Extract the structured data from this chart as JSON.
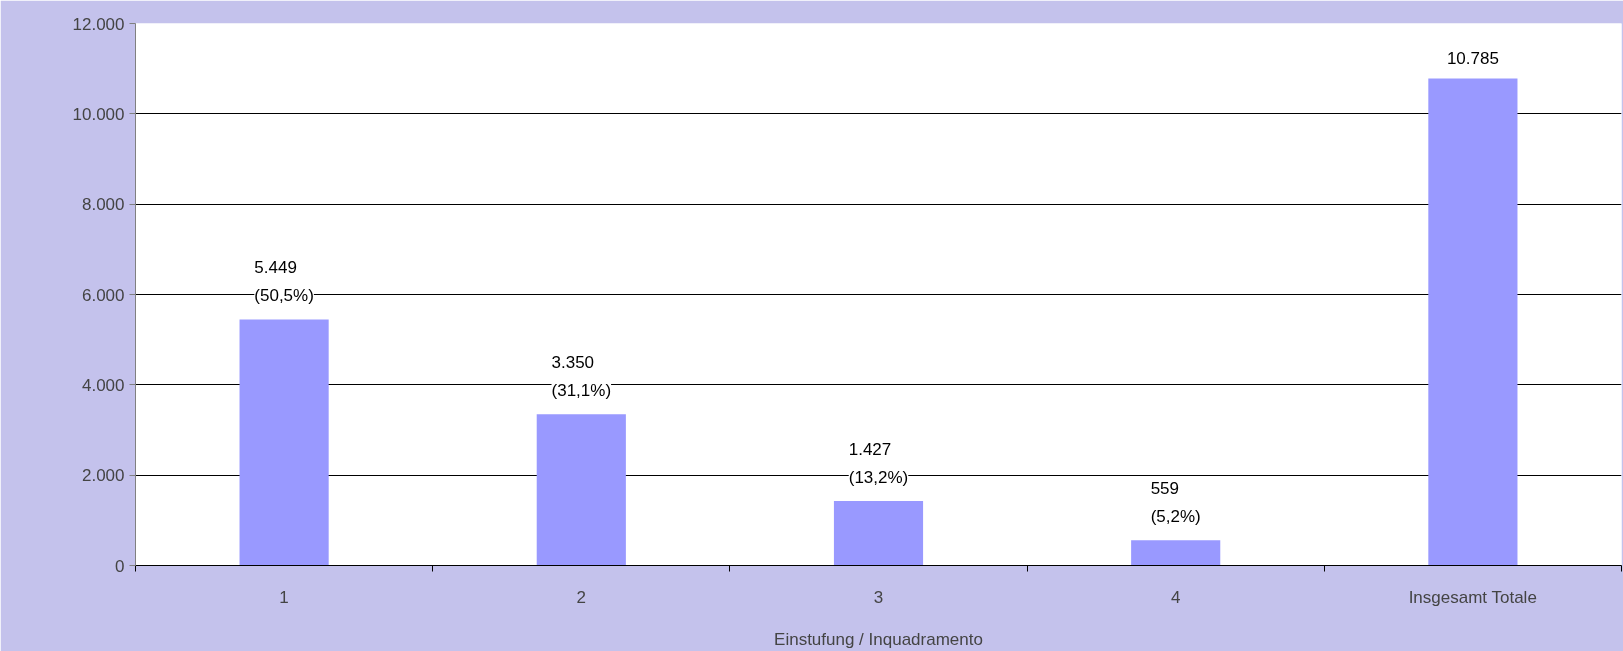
{
  "chart_data": {
    "type": "bar",
    "xlabel": "Einstufung / Inquadramento",
    "categories": [
      "1",
      "2",
      "3",
      "4",
      "Insgesamt Totale"
    ],
    "values": [
      5449,
      3350,
      1427,
      559,
      10785
    ],
    "value_labels": [
      "5.449\n(50,5%)",
      "3.350\n(31,1%)",
      "1.427\n(13,2%)",
      "559\n(5,2%)",
      "10.785"
    ],
    "color": "#9999ff",
    "ylim": [
      0,
      12000
    ],
    "yticks": [
      {
        "value": 0,
        "label": "0"
      },
      {
        "value": 2000,
        "label": "2.000"
      },
      {
        "value": 4000,
        "label": "4.000"
      },
      {
        "value": 6000,
        "label": "6.000"
      },
      {
        "value": 8000,
        "label": "8.000"
      },
      {
        "value": 10000,
        "label": "10.000"
      },
      {
        "value": 12000,
        "label": "12.000"
      }
    ],
    "grid": "y"
  }
}
